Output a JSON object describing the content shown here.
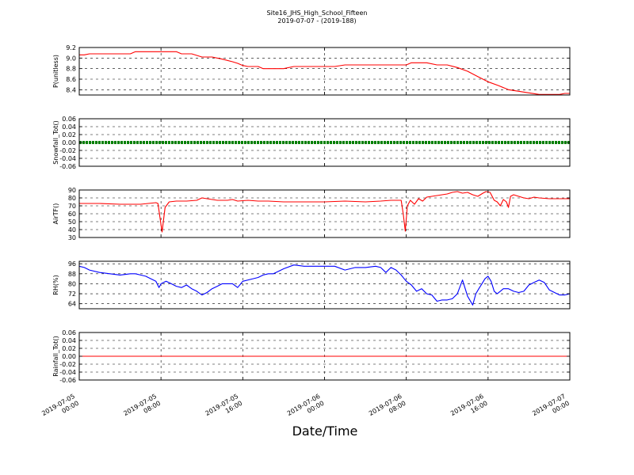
{
  "figure": {
    "title_line1": "Site16_JHS_High_School_Fifteen",
    "title_line2": "2019-07-07 - (2019-188)",
    "xlabel": "Date/Time"
  },
  "chart_data": [
    {
      "type": "line",
      "ylabel": "P(unitless)",
      "ylim": [
        8.3,
        9.2
      ],
      "yticks": [
        8.4,
        8.6,
        8.8,
        9.0,
        9.2
      ],
      "ytick_labels": [
        "8.4",
        "8.6",
        "8.8",
        "9.0",
        "9.2"
      ],
      "grid": true,
      "series": [
        {
          "color": "#ff0000",
          "x": [
            0,
            0.5,
            1.0,
            2.0,
            5.0,
            5.5,
            9.5,
            10.0,
            11.0,
            12.0,
            13.0,
            14.0,
            15.0,
            15.5,
            16.0,
            16.5,
            17.5,
            18.0,
            19.0,
            20.0,
            21.0,
            22.0,
            23.0,
            24.0,
            25.0,
            26.0,
            27.0,
            28.0,
            29.0,
            30.0,
            31.0,
            32.0,
            32.5,
            33.0,
            34.0,
            35.0,
            36.0,
            37.0,
            38.0,
            39.0,
            40.0,
            41.0,
            42.0,
            43.0,
            44.0,
            45.0,
            46.0,
            46.5,
            47.0,
            47.5,
            48.0
          ],
          "y": [
            9.06,
            9.06,
            9.08,
            9.08,
            9.08,
            9.12,
            9.12,
            9.08,
            9.08,
            9.02,
            9.02,
            8.98,
            8.93,
            8.9,
            8.86,
            8.84,
            8.84,
            8.8,
            8.8,
            8.8,
            8.84,
            8.84,
            8.84,
            8.84,
            8.84,
            8.87,
            8.87,
            8.87,
            8.87,
            8.87,
            8.87,
            8.87,
            8.91,
            8.91,
            8.91,
            8.87,
            8.87,
            8.82,
            8.75,
            8.65,
            8.55,
            8.48,
            8.4,
            8.37,
            8.34,
            8.31,
            8.31,
            8.31,
            8.31,
            8.33,
            8.33
          ]
        }
      ]
    },
    {
      "type": "line",
      "ylabel": "Snowfall_Tot()",
      "ylim": [
        -0.06,
        0.06
      ],
      "yticks": [
        -0.06,
        -0.04,
        -0.02,
        0.0,
        0.02,
        0.04,
        0.06
      ],
      "ytick_labels": [
        "-0.06",
        "-0.04",
        "-0.02",
        "0.00",
        "0.02",
        "0.04",
        "0.06"
      ],
      "grid": true,
      "series": [
        {
          "color": "#008000",
          "style": "thick",
          "x": [
            0,
            48.0
          ],
          "y": [
            0.0,
            0.0
          ]
        }
      ]
    },
    {
      "type": "line",
      "ylabel": "AirTF()",
      "ylim": [
        30,
        90
      ],
      "yticks": [
        30,
        40,
        50,
        60,
        70,
        80,
        90
      ],
      "ytick_labels": [
        "30",
        "40",
        "50",
        "60",
        "70",
        "80",
        "90"
      ],
      "grid": true,
      "series": [
        {
          "color": "#ff0000",
          "x": [
            0,
            2,
            4,
            6,
            7.5,
            7.7,
            7.9,
            8.1,
            8.4,
            8.8,
            9.5,
            10.5,
            11.5,
            12.0,
            12.5,
            13.5,
            14.5,
            15.0,
            15.5,
            16.5,
            17.5,
            18.5,
            20,
            22,
            24,
            26,
            28,
            29.5,
            30.5,
            31.5,
            31.7,
            31.9,
            32.1,
            32.4,
            32.8,
            33.2,
            33.6,
            34.0,
            34.5,
            35.0,
            35.5,
            36.0,
            36.5,
            37.0,
            37.5,
            38.0,
            38.5,
            39.0,
            39.5,
            39.8,
            40.2,
            40.6,
            40.9,
            41.2,
            41.5,
            41.8,
            42.0,
            42.2,
            42.5,
            43.0,
            43.5,
            44.0,
            44.5,
            45.0,
            46.0,
            47.0,
            48.0
          ],
          "y": [
            73,
            73,
            72,
            72,
            74,
            73,
            55,
            37,
            68,
            75,
            76,
            76,
            77,
            80,
            79,
            77,
            77,
            78,
            76,
            77,
            76,
            76,
            75,
            75,
            75,
            76,
            75,
            76,
            77,
            77,
            60,
            38,
            70,
            77,
            72,
            79,
            76,
            81,
            82,
            83,
            84,
            85,
            87,
            88,
            86,
            87,
            84,
            82,
            86,
            88,
            87,
            77,
            75,
            70,
            78,
            75,
            68,
            82,
            84,
            82,
            80,
            79,
            81,
            80,
            79,
            79,
            79
          ]
        }
      ]
    },
    {
      "type": "line",
      "ylabel": "RH(%)",
      "ylim": [
        60,
        98
      ],
      "yticks": [
        64,
        72,
        80,
        88,
        96
      ],
      "ytick_labels": [
        "64",
        "72",
        "80",
        "88",
        "96"
      ],
      "grid": true,
      "series": [
        {
          "color": "#0000ff",
          "x": [
            0,
            0.5,
            1,
            2,
            3,
            4,
            5,
            5.5,
            6,
            6.5,
            7,
            7.5,
            7.8,
            8.0,
            8.5,
            9,
            9.5,
            10,
            10.5,
            11,
            11.5,
            12,
            12.5,
            13,
            13.5,
            14,
            14.5,
            15,
            15.5,
            16,
            17,
            17.5,
            18,
            18.5,
            19,
            19.5,
            20,
            21,
            22,
            23,
            24,
            25,
            26,
            27,
            28,
            29,
            29.5,
            30,
            30.5,
            31,
            31.5,
            32,
            32.5,
            33,
            33.5,
            34,
            34.5,
            35,
            35.5,
            36,
            36.5,
            37,
            37.5,
            38,
            38.5,
            38.8,
            39.1,
            39.4,
            39.7,
            40.0,
            40.3,
            40.6,
            40.9,
            41.2,
            41.5,
            42,
            42.5,
            43,
            43.5,
            44,
            44.5,
            45,
            45.5,
            46,
            46.5,
            47,
            47.5,
            48
          ],
          "y": [
            94,
            93,
            91,
            89,
            88,
            87,
            88,
            88,
            87,
            86,
            84,
            82,
            77,
            80,
            82,
            80,
            78,
            77,
            79,
            76,
            74,
            71,
            73,
            76,
            78,
            80,
            80,
            80,
            77,
            82,
            84,
            85,
            87,
            88,
            88,
            90,
            92,
            95,
            94,
            94,
            94,
            94,
            91,
            93,
            93,
            94,
            93,
            89,
            93,
            91,
            87,
            82,
            79,
            74,
            76,
            72,
            71,
            66,
            67,
            67,
            68,
            72,
            83,
            70,
            63,
            72,
            76,
            80,
            84,
            86,
            82,
            74,
            72,
            74,
            76,
            76,
            74,
            73,
            74,
            79,
            81,
            83,
            81,
            75,
            73,
            71,
            71,
            72
          ]
        }
      ]
    },
    {
      "type": "line",
      "ylabel": "Rainfall_Tot()",
      "ylim": [
        -0.06,
        0.06
      ],
      "yticks": [
        -0.06,
        -0.04,
        -0.02,
        0.0,
        0.02,
        0.04,
        0.06
      ],
      "ytick_labels": [
        "-0.06",
        "-0.04",
        "-0.02",
        "0.00",
        "0.02",
        "0.04",
        "0.06"
      ],
      "grid": true,
      "series": [
        {
          "color": "#ff0000",
          "x": [
            0,
            48.0
          ],
          "y": [
            0.0,
            0.0
          ]
        }
      ]
    }
  ],
  "x_axis": {
    "xlim": [
      0,
      48
    ],
    "ticks": [
      0,
      8,
      16,
      24,
      32,
      40,
      48
    ],
    "tick_labels": [
      [
        "2019-07-05",
        "00:00"
      ],
      [
        "2019-07-05",
        "08:00"
      ],
      [
        "2019-07-05",
        "16:00"
      ],
      [
        "2019-07-06",
        "00:00"
      ],
      [
        "2019-07-06",
        "08:00"
      ],
      [
        "2019-07-06",
        "16:00"
      ],
      [
        "2019-07-07",
        "00:00"
      ]
    ]
  }
}
